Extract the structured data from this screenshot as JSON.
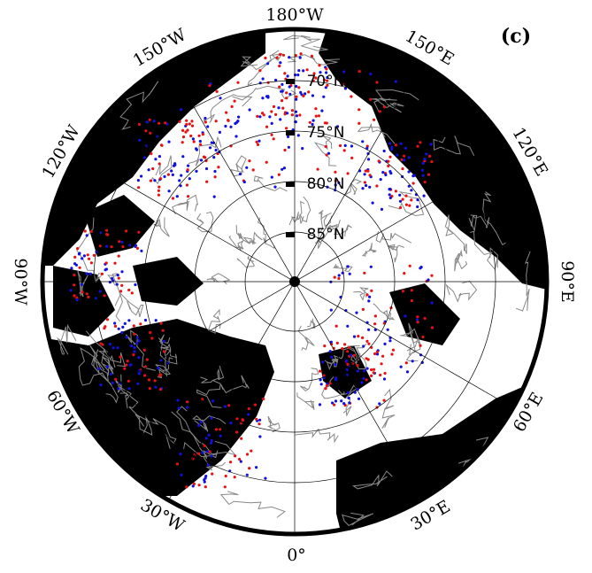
{
  "panel_label": "(c)",
  "longitude_labels": [
    "180°W",
    "150°E",
    "120°E",
    "90°E",
    "60°E",
    "30°E",
    "0°",
    "30°W",
    "60°W",
    "90°W",
    "120°W",
    "150°W"
  ],
  "latitude_labels": [
    "70°N",
    "75°N",
    "80°N",
    "85°N"
  ]
}
